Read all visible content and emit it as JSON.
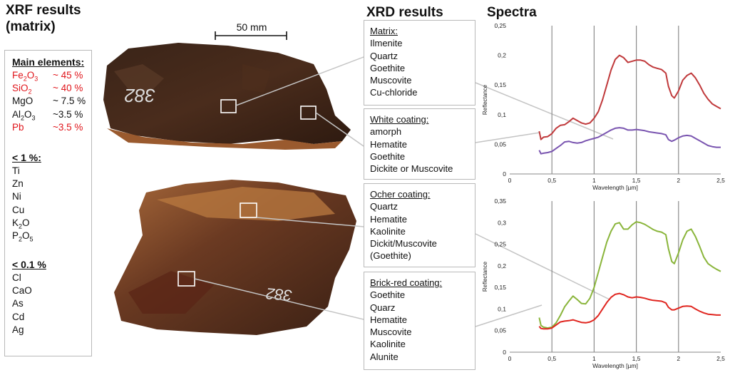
{
  "xrf": {
    "title_line1": "XRF results",
    "title_line2": "(matrix)",
    "main_heading": "Main elements:",
    "main": [
      {
        "name": "Fe2O3",
        "value": "~ 45 %",
        "color": "#e0151b"
      },
      {
        "name": "SiO2",
        "value": "~ 40 %",
        "color": "#e0151b"
      },
      {
        "name": "MgO",
        "value": "~ 7.5 %",
        "color": "#111111"
      },
      {
        "name": "Al2O3",
        "value": "~3.5 %",
        "color": "#111111"
      },
      {
        "name": "Pb",
        "value": "~3.5 %",
        "color": "#e0151b"
      }
    ],
    "lt1_heading": "< 1 %:",
    "lt1": [
      "Ti",
      "Zn",
      "Ni",
      "Cu",
      "K2O",
      "P2O5"
    ],
    "lt01_heading": "< 0.1 %",
    "lt01": [
      "Cl",
      "CaO",
      "As",
      "Cd",
      "Ag"
    ]
  },
  "scale_bar": {
    "label": "50 mm"
  },
  "xrd": {
    "title": "XRD results",
    "boxes": [
      {
        "title": "Matrix:",
        "items": [
          "Ilmenite",
          "Quartz",
          "Goethite",
          "Muscovite",
          "Cu-chloride"
        ]
      },
      {
        "title": "White coating:",
        "items": [
          "amorph",
          "Hematite",
          "Goethite",
          "Dickite or Muscovite"
        ]
      },
      {
        "title": "Ocher coating:",
        "items": [
          "Quartz",
          "Hematite",
          "Kaolinite",
          "Dickit/Muscovite",
          "(Goethite)"
        ]
      },
      {
        "title": "Brick-red coating:",
        "items": [
          "Goethite",
          "Quarz",
          "Hematite",
          "Muscovite",
          "Kaolinite",
          "Alunite"
        ]
      }
    ]
  },
  "spectra": {
    "title": "Spectra"
  },
  "chart_data": [
    {
      "type": "line",
      "xlabel": "Wavelength [µm]",
      "ylabel": "Reflectance",
      "xlim": [
        0,
        2.5
      ],
      "ylim": [
        0,
        0.25
      ],
      "xticks": [
        "0",
        "0,5",
        "1",
        "1,5",
        "2",
        "2,5"
      ],
      "yticks": [
        "0",
        "0,05",
        "0,1",
        "0,15",
        "0,2",
        "0,25"
      ],
      "grid": "vertical lines at 0.5, 1, 1.5, 2",
      "series": [
        {
          "color": "#c0393b",
          "x": [
            0.35,
            0.37,
            0.4,
            0.45,
            0.5,
            0.55,
            0.6,
            0.65,
            0.7,
            0.75,
            0.8,
            0.85,
            0.9,
            0.95,
            1.0,
            1.05,
            1.1,
            1.15,
            1.2,
            1.25,
            1.3,
            1.35,
            1.4,
            1.45,
            1.5,
            1.55,
            1.6,
            1.65,
            1.7,
            1.75,
            1.8,
            1.85,
            1.88,
            1.92,
            1.95,
            2.0,
            2.05,
            2.1,
            2.15,
            2.2,
            2.25,
            2.3,
            2.35,
            2.4,
            2.45,
            2.5
          ],
          "y": [
            0.072,
            0.058,
            0.062,
            0.063,
            0.068,
            0.077,
            0.082,
            0.083,
            0.088,
            0.094,
            0.09,
            0.086,
            0.084,
            0.086,
            0.094,
            0.105,
            0.125,
            0.15,
            0.175,
            0.193,
            0.2,
            0.196,
            0.188,
            0.19,
            0.192,
            0.192,
            0.19,
            0.184,
            0.18,
            0.178,
            0.176,
            0.17,
            0.148,
            0.132,
            0.128,
            0.14,
            0.158,
            0.166,
            0.17,
            0.162,
            0.15,
            0.136,
            0.126,
            0.118,
            0.114,
            0.11
          ]
        },
        {
          "color": "#7a55b0",
          "x": [
            0.35,
            0.37,
            0.4,
            0.45,
            0.5,
            0.55,
            0.6,
            0.65,
            0.7,
            0.75,
            0.8,
            0.85,
            0.9,
            0.95,
            1.0,
            1.05,
            1.1,
            1.15,
            1.2,
            1.25,
            1.3,
            1.35,
            1.4,
            1.45,
            1.5,
            1.55,
            1.6,
            1.65,
            1.7,
            1.75,
            1.8,
            1.85,
            1.88,
            1.92,
            1.95,
            2.0,
            2.05,
            2.1,
            2.15,
            2.2,
            2.25,
            2.3,
            2.35,
            2.4,
            2.45,
            2.5
          ],
          "y": [
            0.04,
            0.034,
            0.035,
            0.036,
            0.038,
            0.043,
            0.048,
            0.054,
            0.055,
            0.053,
            0.052,
            0.053,
            0.056,
            0.058,
            0.06,
            0.062,
            0.066,
            0.07,
            0.074,
            0.077,
            0.078,
            0.077,
            0.074,
            0.074,
            0.075,
            0.074,
            0.073,
            0.071,
            0.07,
            0.069,
            0.068,
            0.066,
            0.058,
            0.055,
            0.057,
            0.061,
            0.064,
            0.065,
            0.064,
            0.06,
            0.056,
            0.052,
            0.048,
            0.046,
            0.045,
            0.045
          ]
        }
      ]
    },
    {
      "type": "line",
      "xlabel": "Wavelength [µm]",
      "ylabel": "Reflectance",
      "xlim": [
        0,
        2.5
      ],
      "ylim": [
        0,
        0.35
      ],
      "xticks": [
        "0",
        "0,5",
        "1",
        "1,5",
        "2",
        "2,5"
      ],
      "yticks": [
        "0",
        "0,05",
        "0,1",
        "0,15",
        "0,2",
        "0,25",
        "0,3",
        "0,35"
      ],
      "grid": "vertical lines at 0.5, 1, 1.5, 2",
      "series": [
        {
          "color": "#8ab53b",
          "x": [
            0.35,
            0.37,
            0.4,
            0.45,
            0.5,
            0.55,
            0.6,
            0.65,
            0.7,
            0.75,
            0.8,
            0.85,
            0.9,
            0.95,
            1.0,
            1.05,
            1.1,
            1.15,
            1.2,
            1.25,
            1.3,
            1.35,
            1.4,
            1.45,
            1.5,
            1.55,
            1.6,
            1.65,
            1.7,
            1.75,
            1.8,
            1.85,
            1.88,
            1.92,
            1.95,
            2.0,
            2.05,
            2.1,
            2.15,
            2.2,
            2.25,
            2.3,
            2.35,
            2.4,
            2.45,
            2.5
          ],
          "y": [
            0.08,
            0.062,
            0.058,
            0.056,
            0.058,
            0.068,
            0.085,
            0.105,
            0.118,
            0.13,
            0.122,
            0.113,
            0.112,
            0.125,
            0.15,
            0.185,
            0.22,
            0.255,
            0.28,
            0.297,
            0.3,
            0.285,
            0.285,
            0.295,
            0.302,
            0.3,
            0.296,
            0.29,
            0.284,
            0.28,
            0.278,
            0.272,
            0.24,
            0.21,
            0.205,
            0.23,
            0.26,
            0.28,
            0.285,
            0.268,
            0.245,
            0.22,
            0.205,
            0.198,
            0.192,
            0.187
          ]
        },
        {
          "color": "#e0251f",
          "x": [
            0.35,
            0.37,
            0.4,
            0.45,
            0.5,
            0.55,
            0.6,
            0.65,
            0.7,
            0.75,
            0.8,
            0.85,
            0.9,
            0.95,
            1.0,
            1.05,
            1.1,
            1.15,
            1.2,
            1.25,
            1.3,
            1.35,
            1.4,
            1.45,
            1.5,
            1.55,
            1.6,
            1.65,
            1.7,
            1.75,
            1.8,
            1.85,
            1.88,
            1.92,
            1.95,
            2.0,
            2.05,
            2.1,
            2.15,
            2.2,
            2.25,
            2.3,
            2.35,
            2.4,
            2.45,
            2.5
          ],
          "y": [
            0.06,
            0.055,
            0.054,
            0.054,
            0.056,
            0.063,
            0.07,
            0.072,
            0.073,
            0.075,
            0.072,
            0.069,
            0.068,
            0.07,
            0.075,
            0.085,
            0.1,
            0.115,
            0.127,
            0.134,
            0.136,
            0.133,
            0.128,
            0.126,
            0.128,
            0.127,
            0.125,
            0.122,
            0.12,
            0.119,
            0.118,
            0.114,
            0.104,
            0.098,
            0.098,
            0.102,
            0.106,
            0.107,
            0.106,
            0.1,
            0.095,
            0.091,
            0.088,
            0.087,
            0.086,
            0.086
          ]
        }
      ]
    }
  ]
}
